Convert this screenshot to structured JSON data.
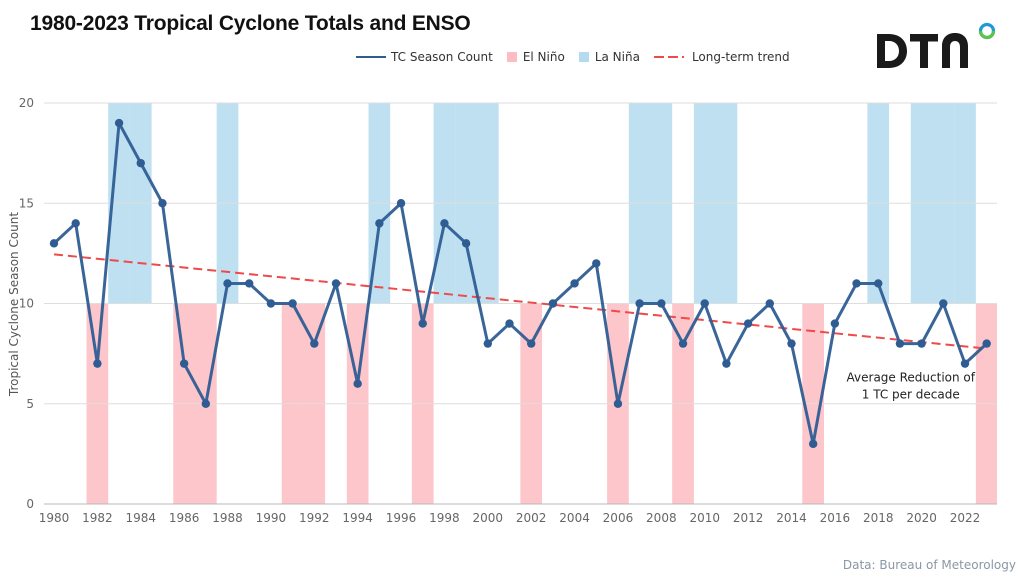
{
  "brand": {
    "name": "DTN",
    "ring_colors": [
      "#1e9bd7",
      "#5cc34a"
    ]
  },
  "source_label": "Data: Bureau of Meteorology",
  "chart_data": {
    "type": "line",
    "title": "1980-2023 Tropical Cyclone Totals and ENSO",
    "xlabel": "",
    "ylabel": "Tropical Cyclone Season Count",
    "xlim": [
      1979.7,
      2023.5
    ],
    "ylim": [
      0,
      20
    ],
    "yticks": [
      0,
      5,
      10,
      15,
      20
    ],
    "xticks": [
      1980,
      1982,
      1984,
      1986,
      1988,
      1990,
      1992,
      1994,
      1996,
      1998,
      2000,
      2002,
      2004,
      2006,
      2008,
      2010,
      2012,
      2014,
      2016,
      2018,
      2020,
      2022
    ],
    "grid": true,
    "legend_position": "top-center",
    "legend": [
      {
        "key": "tc",
        "label": "TC Season Count",
        "color": "#2f5d93",
        "kind": "line"
      },
      {
        "key": "elnino",
        "label": "El Niño",
        "color": "#fcbcc1",
        "kind": "square"
      },
      {
        "key": "lanina",
        "label": "La Niña",
        "color": "#b3daef",
        "kind": "square"
      },
      {
        "key": "trend",
        "label": "Long-term trend",
        "color": "#ef4a4a",
        "kind": "dash"
      }
    ],
    "x": [
      1980,
      1981,
      1982,
      1983,
      1984,
      1985,
      1986,
      1987,
      1988,
      1989,
      1990,
      1991,
      1992,
      1993,
      1994,
      1995,
      1996,
      1997,
      1998,
      1999,
      2000,
      2001,
      2002,
      2003,
      2004,
      2005,
      2006,
      2007,
      2008,
      2009,
      2010,
      2011,
      2012,
      2013,
      2014,
      2015,
      2016,
      2017,
      2018,
      2019,
      2020,
      2021,
      2022,
      2023
    ],
    "series": [
      {
        "name": "TC Season Count",
        "color": "#2f5d93",
        "values": [
          13,
          14,
          7,
          19,
          17,
          15,
          7,
          5,
          11,
          11,
          10,
          10,
          8,
          11,
          6,
          14,
          15,
          9,
          14,
          13,
          8,
          9,
          8,
          10,
          11,
          12,
          5,
          10,
          10,
          8,
          10,
          7,
          9,
          10,
          8,
          3,
          9,
          11,
          11,
          8,
          8,
          10,
          7,
          8
        ]
      }
    ],
    "trend": {
      "name": "Long-term trend",
      "x": [
        1980,
        2023
      ],
      "y": [
        12.45,
        7.75
      ],
      "color": "#ef4a4a"
    },
    "enso": {
      "el_nino": {
        "years": [
          1982,
          1986,
          1987,
          1991,
          1992,
          1994,
          1997,
          2002,
          2006,
          2009,
          2015,
          2023
        ],
        "range": [
          0,
          10
        ],
        "color": "#fcbcc1"
      },
      "la_nina": {
        "years": [
          1983,
          1984,
          1988,
          1995,
          1998,
          1999,
          2000,
          2007,
          2008,
          2010,
          2011,
          2018,
          2020,
          2021,
          2022
        ],
        "range": [
          10,
          20
        ],
        "color": "#b3daef"
      }
    },
    "annotation": {
      "lines": [
        "Average Reduction of",
        "1 TC per decade"
      ],
      "x": 2019.5,
      "y": 6.1
    }
  }
}
